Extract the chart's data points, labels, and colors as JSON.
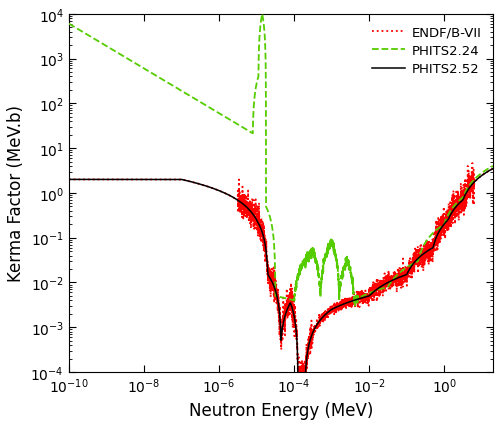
{
  "xlabel": "Neutron Energy (MeV)",
  "ylabel": "Kerma Factor (MeV.b)",
  "xlim_log": [
    -10,
    1.3
  ],
  "ylim_log": [
    -4,
    4
  ],
  "legend_labels": [
    "PHITS2.52",
    "PHITS2.24",
    "ENDF/B-VII"
  ],
  "colors": {
    "phits252": "#000000",
    "phits224": "#55cc00",
    "endf": "#ff0000"
  },
  "lw_252": 1.1,
  "lw_224": 1.3,
  "lw_endf": 1.3
}
